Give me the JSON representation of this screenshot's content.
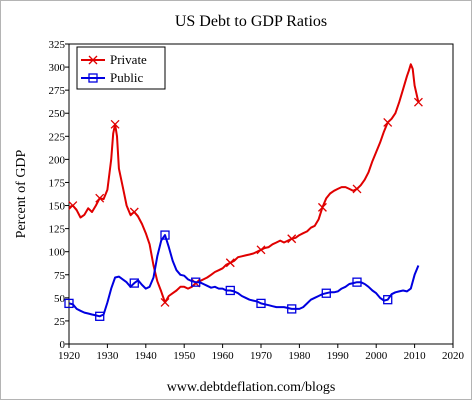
{
  "chart_data": {
    "type": "line",
    "title": "US Debt to GDP Ratios",
    "ylabel": "Percent of GDP",
    "xlabel": "",
    "footer": "www.debtdeflation.com/blogs",
    "xlim": [
      1920,
      2020
    ],
    "ylim": [
      0,
      325
    ],
    "xticks": [
      1920,
      1930,
      1940,
      1950,
      1960,
      1970,
      1980,
      1990,
      2000,
      2010,
      2020
    ],
    "yticks": [
      0,
      25,
      50,
      75,
      100,
      125,
      150,
      175,
      200,
      225,
      250,
      275,
      300,
      325
    ],
    "grid": false,
    "legend_position": "top-left",
    "series": [
      {
        "name": "Private",
        "color": "#e00000",
        "marker": "x",
        "x": [
          1920,
          1921,
          1922,
          1923,
          1924,
          1925,
          1926,
          1927,
          1928,
          1929,
          1930,
          1931,
          1931.5,
          1932,
          1932.5,
          1933,
          1934,
          1935,
          1936,
          1937,
          1938,
          1939,
          1940,
          1941,
          1942,
          1943,
          1944,
          1945,
          1946,
          1947,
          1948,
          1949,
          1950,
          1951,
          1952,
          1953,
          1954,
          1955,
          1956,
          1957,
          1958,
          1959,
          1960,
          1961,
          1962,
          1963,
          1964,
          1965,
          1966,
          1967,
          1968,
          1969,
          1970,
          1971,
          1972,
          1973,
          1974,
          1975,
          1976,
          1977,
          1978,
          1979,
          1980,
          1981,
          1982,
          1983,
          1984,
          1985,
          1986,
          1987,
          1988,
          1989,
          1990,
          1991,
          1992,
          1993,
          1994,
          1995,
          1996,
          1997,
          1998,
          1999,
          2000,
          2001,
          2002,
          2003,
          2004,
          2005,
          2006,
          2007,
          2008,
          2008.5,
          2009,
          2009.5,
          2010,
          2011
        ],
        "values": [
          148,
          150,
          145,
          137,
          140,
          147,
          143,
          150,
          158,
          157,
          167,
          200,
          228,
          238,
          225,
          190,
          170,
          150,
          140,
          143,
          138,
          130,
          120,
          108,
          85,
          68,
          57,
          45,
          52,
          55,
          58,
          62,
          62,
          60,
          62,
          66,
          68,
          70,
          72,
          75,
          78,
          80,
          82,
          86,
          88,
          90,
          94,
          95,
          96,
          97,
          98,
          100,
          102,
          104,
          105,
          108,
          110,
          112,
          110,
          112,
          114,
          115,
          118,
          120,
          122,
          126,
          128,
          135,
          148,
          158,
          163,
          166,
          168,
          170,
          170,
          168,
          166,
          168,
          172,
          178,
          186,
          198,
          208,
          218,
          230,
          240,
          244,
          250,
          262,
          276,
          290,
          296,
          303,
          298,
          280,
          262
        ],
        "markers_at": [
          1921,
          1928,
          1932,
          1937,
          1945,
          1953,
          1962,
          1970,
          1978,
          1986,
          1995,
          2003,
          2011
        ]
      },
      {
        "name": "Public",
        "color": "#0000e0",
        "marker": "square",
        "x": [
          1920,
          1921,
          1922,
          1923,
          1924,
          1925,
          1926,
          1927,
          1928,
          1929,
          1930,
          1931,
          1932,
          1933,
          1934,
          1935,
          1936,
          1937,
          1938,
          1939,
          1940,
          1941,
          1942,
          1943,
          1944,
          1945,
          1946,
          1947,
          1948,
          1949,
          1950,
          1951,
          1952,
          1953,
          1954,
          1955,
          1956,
          1957,
          1958,
          1959,
          1960,
          1961,
          1962,
          1963,
          1964,
          1965,
          1966,
          1967,
          1968,
          1969,
          1970,
          1971,
          1972,
          1973,
          1974,
          1975,
          1976,
          1977,
          1978,
          1979,
          1980,
          1981,
          1982,
          1983,
          1984,
          1985,
          1986,
          1987,
          1988,
          1989,
          1990,
          1991,
          1992,
          1993,
          1994,
          1995,
          1996,
          1997,
          1998,
          1999,
          2000,
          2001,
          2002,
          2003,
          2004,
          2005,
          2006,
          2007,
          2008,
          2009,
          2010,
          2011
        ],
        "values": [
          44,
          43,
          38,
          36,
          34,
          33,
          32,
          31,
          30,
          32,
          45,
          60,
          72,
          73,
          70,
          67,
          62,
          66,
          69,
          64,
          60,
          62,
          72,
          95,
          112,
          118,
          105,
          90,
          80,
          75,
          74,
          70,
          68,
          67,
          67,
          65,
          63,
          61,
          62,
          60,
          60,
          58,
          58,
          57,
          55,
          52,
          50,
          48,
          47,
          46,
          44,
          43,
          42,
          41,
          40,
          40,
          40,
          39,
          38,
          38,
          38,
          40,
          44,
          48,
          50,
          52,
          54,
          55,
          56,
          56,
          57,
          60,
          62,
          65,
          66,
          67,
          67,
          65,
          62,
          58,
          55,
          50,
          47,
          48,
          54,
          56,
          57,
          58,
          57,
          60,
          75,
          85
        ],
        "markers_at": [
          1920,
          1928,
          1937,
          1945,
          1953,
          1962,
          1970,
          1978,
          1987,
          1995,
          2003
        ]
      }
    ]
  }
}
